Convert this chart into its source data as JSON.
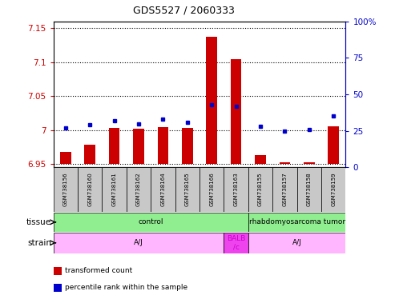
{
  "title": "GDS5527 / 2060333",
  "samples": [
    "GSM738156",
    "GSM738160",
    "GSM738161",
    "GSM738162",
    "GSM738164",
    "GSM738165",
    "GSM738166",
    "GSM738163",
    "GSM738155",
    "GSM738157",
    "GSM738158",
    "GSM738159"
  ],
  "red_values": [
    6.968,
    6.978,
    7.003,
    7.002,
    7.004,
    7.003,
    7.138,
    7.105,
    6.963,
    6.952,
    6.952,
    7.006
  ],
  "blue_values_pct": [
    27,
    29,
    32,
    30,
    33,
    31,
    43,
    42,
    28,
    25,
    26,
    35
  ],
  "ylim_left": [
    6.945,
    7.16
  ],
  "ylim_right": [
    0,
    100
  ],
  "yticks_left": [
    6.95,
    7.0,
    7.05,
    7.1,
    7.15
  ],
  "yticks_right": [
    0,
    25,
    50,
    75,
    100
  ],
  "ytick_labels_left": [
    "6.95",
    "7",
    "7.05",
    "7.1",
    "7.15"
  ],
  "ytick_labels_right": [
    "0",
    "25",
    "50",
    "75",
    "100%"
  ],
  "baseline": 6.95,
  "bar_color": "#CC0000",
  "dot_color": "#0000CC",
  "left_axis_color": "#CC0000",
  "right_axis_color": "#0000CC",
  "tissue_groups": [
    {
      "label": "control",
      "start": 0,
      "end": 8,
      "color": "#90EE90"
    },
    {
      "label": "rhabdomyosarcoma tumor",
      "start": 8,
      "end": 12,
      "color": "#90EE90"
    }
  ],
  "strain_groups": [
    {
      "label": "A/J",
      "start": 0,
      "end": 7,
      "color": "#FFB6FF"
    },
    {
      "label": "BALB\n/c",
      "start": 7,
      "end": 8,
      "color": "#EE44EE"
    },
    {
      "label": "A/J",
      "start": 8,
      "end": 12,
      "color": "#FFB6FF"
    }
  ],
  "legend_items": [
    {
      "label": "transformed count",
      "color": "#CC0000"
    },
    {
      "label": "percentile rank within the sample",
      "color": "#0000CC"
    }
  ],
  "tissue_row_label": "tissue",
  "strain_row_label": "strain",
  "sample_bg": "#C8C8C8",
  "bar_width": 0.45
}
